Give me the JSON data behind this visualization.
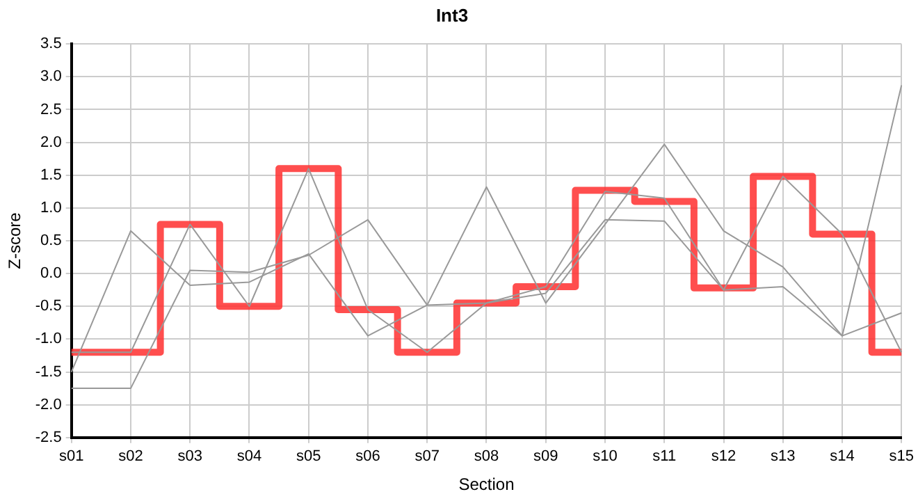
{
  "chart_data": {
    "type": "line",
    "title": "Int3",
    "xlabel": "Section",
    "ylabel": "Z-score",
    "categories": [
      "s01",
      "s02",
      "s03",
      "s04",
      "s05",
      "s06",
      "s07",
      "s08",
      "s09",
      "s10",
      "s11",
      "s12",
      "s13",
      "s14",
      "s15"
    ],
    "series": [
      {
        "color": "#999999",
        "values": [
          -1.75,
          -1.75,
          0.05,
          0.02,
          0.28,
          0.82,
          -0.48,
          -0.45,
          -0.3,
          0.82,
          0.8,
          -0.25,
          -0.2,
          -0.95,
          -0.6
        ]
      },
      {
        "color": "#999999",
        "values": [
          -1.5,
          0.65,
          -0.18,
          -0.13,
          0.3,
          -0.95,
          -0.48,
          1.32,
          -0.45,
          0.75,
          1.97,
          0.65,
          0.1,
          -0.95,
          2.87
        ]
      },
      {
        "color": "#999999",
        "values": [
          -1.2,
          -1.2,
          0.75,
          -0.5,
          1.6,
          -0.55,
          -1.2,
          -0.45,
          -0.2,
          1.25,
          1.15,
          -0.25,
          1.48,
          0.6,
          -1.2
        ]
      },
      {
        "type": "step",
        "color": "#ff3333",
        "values": [
          -1.2,
          -1.2,
          0.75,
          -0.5,
          1.6,
          -0.55,
          -1.2,
          -0.45,
          -0.2,
          1.27,
          1.1,
          -0.22,
          1.48,
          0.6,
          -1.2
        ]
      }
    ],
    "ylim": [
      -2.5,
      3.5
    ],
    "yticks": [
      {
        "value": -2.5,
        "label": "-2.5"
      },
      {
        "value": -2,
        "label": "-2.0"
      },
      {
        "value": -1.5,
        "label": "-1.5"
      },
      {
        "value": -1,
        "label": "-1.0"
      },
      {
        "value": -0.5,
        "label": "-0.5"
      },
      {
        "value": 0,
        "label": "0.0"
      },
      {
        "value": 0.5,
        "label": "0.5"
      },
      {
        "value": 1,
        "label": "1.0"
      },
      {
        "value": 1.5,
        "label": "1.5"
      },
      {
        "value": 2,
        "label": "2.0"
      },
      {
        "value": 2.5,
        "label": "2.5"
      },
      {
        "value": 3,
        "label": "3.0"
      },
      {
        "value": 3.5,
        "label": "3.5"
      }
    ],
    "grid": true,
    "legend": false,
    "marker": "none"
  }
}
